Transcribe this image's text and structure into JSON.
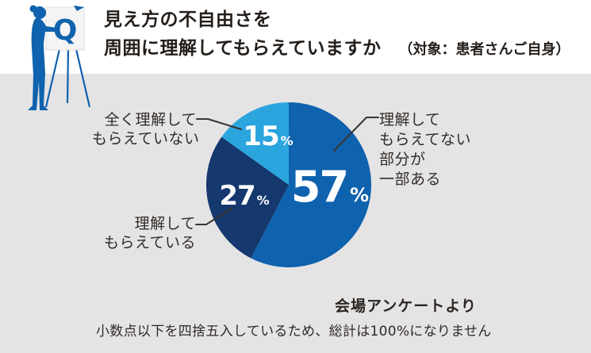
{
  "header": {
    "q_label": "Q",
    "title_line1": "見え方の不自由さを",
    "title_line2": "周囲に理解してもらえていますか",
    "title_note": "（対象：患者さんご自身）"
  },
  "chart_data": {
    "type": "pie",
    "title": "見え方の不自由さを周囲に理解してもらえていますか（対象：患者さんご自身）",
    "unit": "%",
    "start_angle_deg": 0,
    "direction": "clockwise",
    "slices": [
      {
        "label": "理解してもらえてない部分が一部ある",
        "value": 57,
        "color": "#0f62ad"
      },
      {
        "label": "理解してもらえている",
        "value": 27,
        "color": "#15386e"
      },
      {
        "label": "全く理解してもらえていない",
        "value": 15,
        "color": "#2ba5de"
      }
    ],
    "legend_position": "callout-labels",
    "source": "会場アンケートより",
    "note": "小数点以下を四捨五入しているため、総計は100%になりません"
  },
  "callouts": {
    "right": {
      "line1": "理解して",
      "line2": "もらえてない",
      "line3": "部分が",
      "line4": "一部ある"
    },
    "top_left": {
      "line1": "全く理解して",
      "line2": "もらえていない"
    },
    "bottom_left": {
      "line1": "理解して",
      "line2": "もらえている"
    }
  },
  "footer": {
    "source": "会場アンケートより",
    "note": "小数点以下を四捨五入しているため、総計は100%になりません"
  },
  "colors": {
    "main_blue": "#0f62ad",
    "navy": "#15386e",
    "light_blue": "#2ba5de",
    "gray_band": "#e5e4e4",
    "leader_line": "#3a3431"
  }
}
